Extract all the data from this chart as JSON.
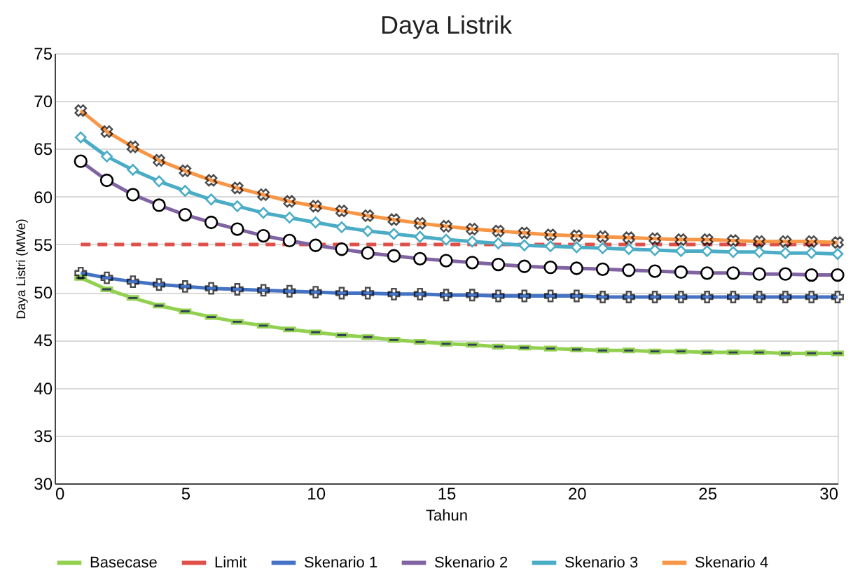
{
  "chart_data": {
    "type": "line",
    "title": "Daya Listrik",
    "xlabel": "Tahun",
    "ylabel": "Daya Listri (MWe)",
    "x": [
      1,
      2,
      3,
      4,
      5,
      6,
      7,
      8,
      9,
      10,
      11,
      12,
      13,
      14,
      15,
      16,
      17,
      18,
      19,
      20,
      21,
      22,
      23,
      24,
      25,
      26,
      27,
      28,
      29,
      30
    ],
    "xlim": [
      0,
      30
    ],
    "xticks": [
      0,
      5,
      10,
      15,
      20,
      25,
      30
    ],
    "ylim": [
      30,
      75
    ],
    "yticks": [
      30,
      35,
      40,
      45,
      50,
      55,
      60,
      65,
      70,
      75
    ],
    "grid": "y",
    "legend": "bottom",
    "series": [
      {
        "name": "Basecase",
        "color": "#92d050",
        "marker": "square",
        "line_style": "solid",
        "values": [
          51.5,
          50.3,
          49.4,
          48.6,
          48.0,
          47.4,
          46.9,
          46.5,
          46.1,
          45.8,
          45.5,
          45.3,
          45.0,
          44.8,
          44.6,
          44.5,
          44.3,
          44.2,
          44.1,
          44.0,
          43.9,
          43.9,
          43.8,
          43.8,
          43.7,
          43.7,
          43.7,
          43.6,
          43.6,
          43.6
        ]
      },
      {
        "name": "Limit",
        "color": "#e0504a",
        "marker": "none",
        "line_style": "dashed",
        "values": [
          55,
          55,
          55,
          55,
          55,
          55,
          55,
          55,
          55,
          55,
          55,
          55,
          55,
          55,
          55,
          55,
          55,
          55,
          55,
          55,
          55,
          55,
          55,
          55,
          55,
          55,
          55,
          55,
          55,
          55
        ]
      },
      {
        "name": "Skenario 1",
        "color": "#4472c4",
        "marker": "cross",
        "line_style": "solid",
        "values": [
          52.0,
          51.5,
          51.1,
          50.8,
          50.6,
          50.4,
          50.3,
          50.2,
          50.1,
          50.0,
          49.9,
          49.9,
          49.8,
          49.8,
          49.7,
          49.7,
          49.6,
          49.6,
          49.6,
          49.6,
          49.5,
          49.5,
          49.5,
          49.5,
          49.5,
          49.5,
          49.5,
          49.5,
          49.5,
          49.5
        ]
      },
      {
        "name": "Skenario 2",
        "color": "#8064a2",
        "marker": "circle",
        "line_style": "solid",
        "values": [
          63.7,
          61.7,
          60.2,
          59.1,
          58.1,
          57.3,
          56.6,
          55.9,
          55.4,
          54.9,
          54.5,
          54.1,
          53.8,
          53.5,
          53.3,
          53.1,
          52.9,
          52.7,
          52.6,
          52.5,
          52.4,
          52.3,
          52.2,
          52.1,
          52.0,
          52.0,
          51.9,
          51.9,
          51.8,
          51.8
        ]
      },
      {
        "name": "Skenario 3",
        "color": "#4bacc6",
        "marker": "diamond",
        "line_style": "solid",
        "values": [
          66.2,
          64.2,
          62.8,
          61.6,
          60.6,
          59.7,
          59.0,
          58.3,
          57.8,
          57.3,
          56.8,
          56.4,
          56.1,
          55.8,
          55.5,
          55.3,
          55.1,
          54.9,
          54.8,
          54.7,
          54.6,
          54.5,
          54.4,
          54.3,
          54.3,
          54.2,
          54.2,
          54.1,
          54.1,
          54.0
        ]
      },
      {
        "name": "Skenario 4",
        "color": "#f79646",
        "marker": "cross",
        "line_style": "solid",
        "values": [
          69.0,
          66.8,
          65.2,
          63.8,
          62.7,
          61.7,
          60.9,
          60.2,
          59.5,
          59.0,
          58.5,
          58.0,
          57.6,
          57.2,
          56.9,
          56.6,
          56.4,
          56.2,
          56.0,
          55.9,
          55.8,
          55.7,
          55.6,
          55.5,
          55.5,
          55.4,
          55.3,
          55.3,
          55.3,
          55.2
        ]
      }
    ]
  }
}
